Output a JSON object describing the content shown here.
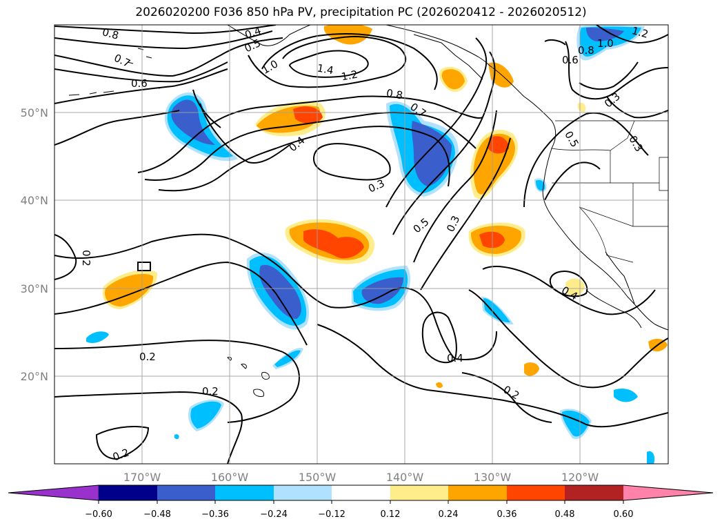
{
  "title": "2026020200 F036 850 hPa PV, precipitation PC (2026020412 - 2026020512)",
  "map": {
    "lon_labels": [
      "170°W",
      "160°W",
      "150°W",
      "140°W",
      "130°W",
      "120°W"
    ],
    "lat_labels": [
      "50°N",
      "40°N",
      "30°N",
      "20°N"
    ],
    "contour_labels": [
      "0.8",
      "0.7",
      "0.6",
      "0.4",
      "0.5",
      "1.0",
      "1.4",
      "1.2",
      "0.8",
      "0.7",
      "0.4",
      "0.3",
      "0.5",
      "0.3",
      "0.2",
      "0.2",
      "0.2",
      "0.2",
      "0.4",
      "0.2",
      "0.6",
      "0.8",
      "1.0",
      "1.2",
      "0.3",
      "0.5",
      "0.3",
      "0.4"
    ]
  },
  "colorbar": {
    "ticks": [
      "−0.60",
      "−0.48",
      "−0.36",
      "−0.24",
      "−0.12",
      "0.12",
      "0.24",
      "0.36",
      "0.48",
      "0.60"
    ],
    "colors": [
      "#9932cc",
      "#00008b",
      "#3a5fcd",
      "#00bfff",
      "#b0e2ff",
      "#ffffff",
      "#ffec8b",
      "#ffa500",
      "#ff4500",
      "#b22222",
      "#ff82ab"
    ]
  }
}
